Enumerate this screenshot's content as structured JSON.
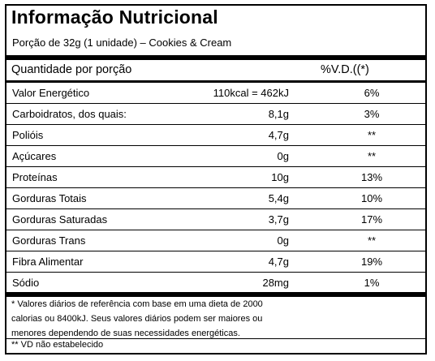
{
  "title": "Informação Nutricional",
  "portion": "Porção de 32g (1 unidade) – Cookies & Cream",
  "header": {
    "quantity_label": "Quantidade por porção",
    "vd_label": "%V.D.((*)"
  },
  "rows": [
    {
      "name": "Valor Energético",
      "amount": "110kcal = 462kJ",
      "vd": "6%"
    },
    {
      "name": "Carboidratos, dos quais:",
      "amount": "8,1g",
      "vd": "3%"
    },
    {
      "name": "Polióis",
      "amount": "4,7g",
      "vd": "**"
    },
    {
      "name": "Açúcares",
      "amount": "0g",
      "vd": "**"
    },
    {
      "name": "Proteínas",
      "amount": "10g",
      "vd": "13%"
    },
    {
      "name": "Gorduras Totais",
      "amount": "5,4g",
      "vd": "10%"
    },
    {
      "name": "Gorduras Saturadas",
      "amount": "3,7g",
      "vd": "17%"
    },
    {
      "name": "Gorduras Trans",
      "amount": "0g",
      "vd": "**"
    },
    {
      "name": "Fibra Alimentar",
      "amount": "4,7g",
      "vd": "19%"
    },
    {
      "name": "Sódio",
      "amount": "28mg",
      "vd": "1%"
    }
  ],
  "footnote": {
    "line1": "* Valores diários de referência com base em uma dieta de 2000",
    "line2": "calorias ou 8400kJ. Seus valores diários podem ser maiores ou",
    "line3": "menores dependendo de suas necessidades energéticas.",
    "not_established": "** VD não estabelecido"
  }
}
